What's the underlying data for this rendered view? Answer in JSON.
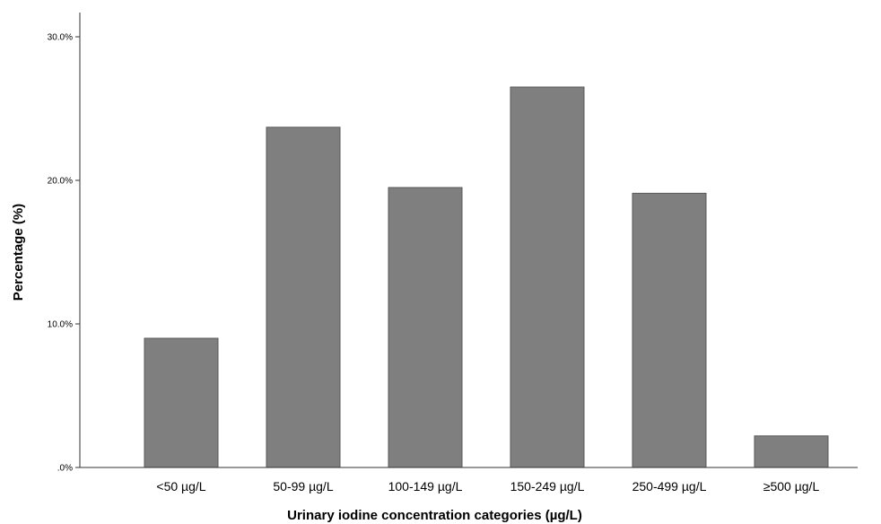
{
  "chart_data": {
    "type": "bar",
    "categories": [
      "<50 µg/L",
      "50-99 µg/L",
      "100-149 µg/L",
      "150-249 µg/L",
      "250-499 µg/L",
      "≥500 µg/L"
    ],
    "values": [
      9.0,
      23.7,
      19.5,
      26.5,
      19.1,
      2.2
    ],
    "xlabel": "Urinary iodine concentration categories (µg/L)",
    "ylabel": "Percentage (%)",
    "ylim": [
      0,
      30
    ],
    "yticks": [
      0,
      10,
      20,
      30
    ],
    "ytick_labels": [
      ".0%",
      "10.0%",
      "20.0%",
      "30.0%"
    ],
    "grid": false,
    "colors": {
      "bar": "#7f7f7f",
      "bar_edge": "#5a5a5a",
      "axis": "#333333"
    }
  }
}
